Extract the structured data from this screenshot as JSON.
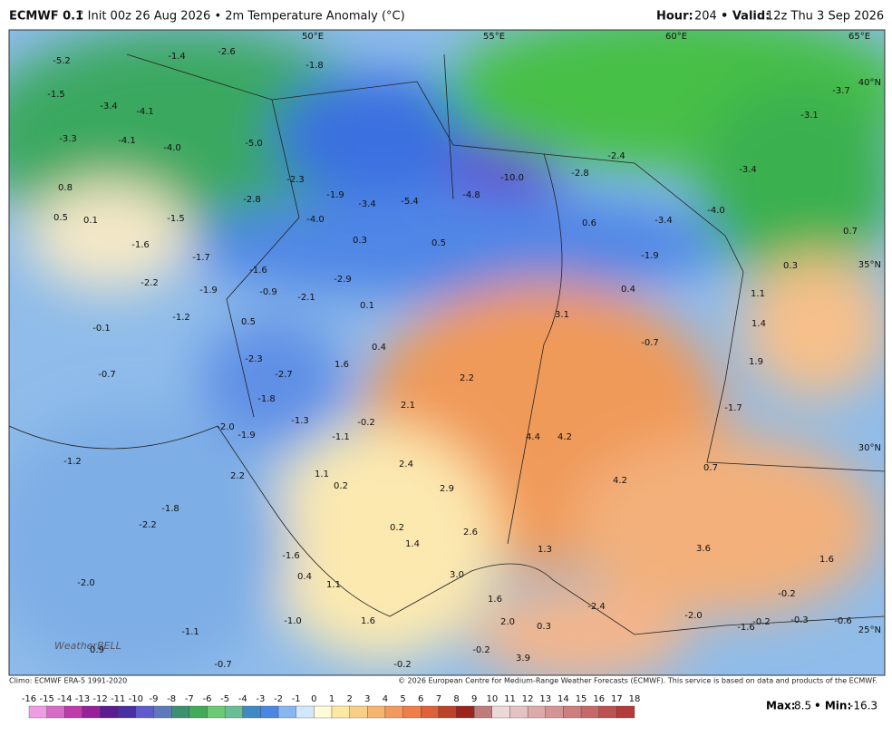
{
  "header": {
    "model": "ECMWF 0.1",
    "title": "° Init 00z 26 Aug 2026 • 2m Temperature Anomaly (°C)",
    "hour_label": "Hour:",
    "hour": "204",
    "valid_label": "• Valid:",
    "valid": "12z Thu 3 Sep 2026"
  },
  "map": {
    "lon_labels": [
      "50°E",
      "55°E",
      "60°E",
      "65°E"
    ],
    "lat_labels": [
      "40°N",
      "35°N",
      "30°N",
      "25°N"
    ],
    "logo": "WeatherBELL",
    "labels": [
      "-5.2",
      "-2.6",
      "-1.4",
      "-1.8",
      "-1.5",
      "-3.4",
      "-4.1",
      "-3.3",
      "-4.1",
      "-4.0",
      "-5.0",
      "-10.0",
      "-2.3",
      "-2.8",
      "-2.4",
      "-3.4",
      "-3.7",
      "-3.1",
      "0.8",
      "-2.8",
      "-1.9",
      "-3.4",
      "-5.4",
      "-4.8",
      "0.5",
      "0.1",
      "-1.5",
      "-4.0",
      "0.6",
      "-3.4",
      "-4.0",
      "0.7",
      "-1.6",
      "0.3",
      "0.5",
      "-1.9",
      "0.3",
      "-1.7",
      "-1.6",
      "-2.9",
      "-2.2",
      "-1.9",
      "-0.9",
      "-2.1",
      "0.1",
      "0.4",
      "1.1",
      "3.1",
      "-1.2",
      "0.5",
      "1.4",
      "-0.1",
      "0.4",
      "-0.7",
      "-2.3",
      "1.6",
      "1.9",
      "-0.7",
      "-2.7",
      "2.2",
      "-1.8",
      "2.1",
      "-1.7",
      "-1.3",
      "-0.2",
      "-2.0",
      "4.4",
      "4.2",
      "-1.9",
      "-1.1",
      "-1.2",
      "2.4",
      "0.7",
      "1.1",
      "2.2",
      "0.2",
      "2.9",
      "4.2",
      "-1.8",
      "-2.2",
      "0.2",
      "2.6",
      "1.4",
      "3.6",
      "1.6",
      "1.3",
      "-1.6",
      "0.4",
      "3.0",
      "1.1",
      "-2.0",
      "1.6",
      "-0.2",
      "-2.4",
      "-2.0",
      "-1.0",
      "1.6",
      "2.0",
      "0.3",
      "-1.6",
      "-0.2",
      "-0.3",
      "-0.6",
      "-1.1",
      "0.9",
      "-0.2",
      "3.9",
      "-0.7",
      "-0.2"
    ]
  },
  "footer": {
    "climo": "Climo: ECMWF ERA-5 1991-2020",
    "copyright": "© 2026 European Centre for Medium-Range Weather Forecasts (ECMWF). This service is based on data and products of the ECMWF.",
    "max_label": "Max:",
    "max": "8.5",
    "min_label": "• Min:",
    "min": "-16.3"
  },
  "colorbar": {
    "ticks": [
      -16,
      -15,
      -14,
      -13,
      -12,
      -11,
      -10,
      -9,
      -8,
      -7,
      -6,
      -5,
      -4,
      -3,
      -2,
      -1,
      0,
      1,
      2,
      3,
      4,
      5,
      6,
      7,
      8,
      9,
      10,
      11,
      12,
      13,
      14,
      15,
      16,
      17,
      18
    ]
  }
}
